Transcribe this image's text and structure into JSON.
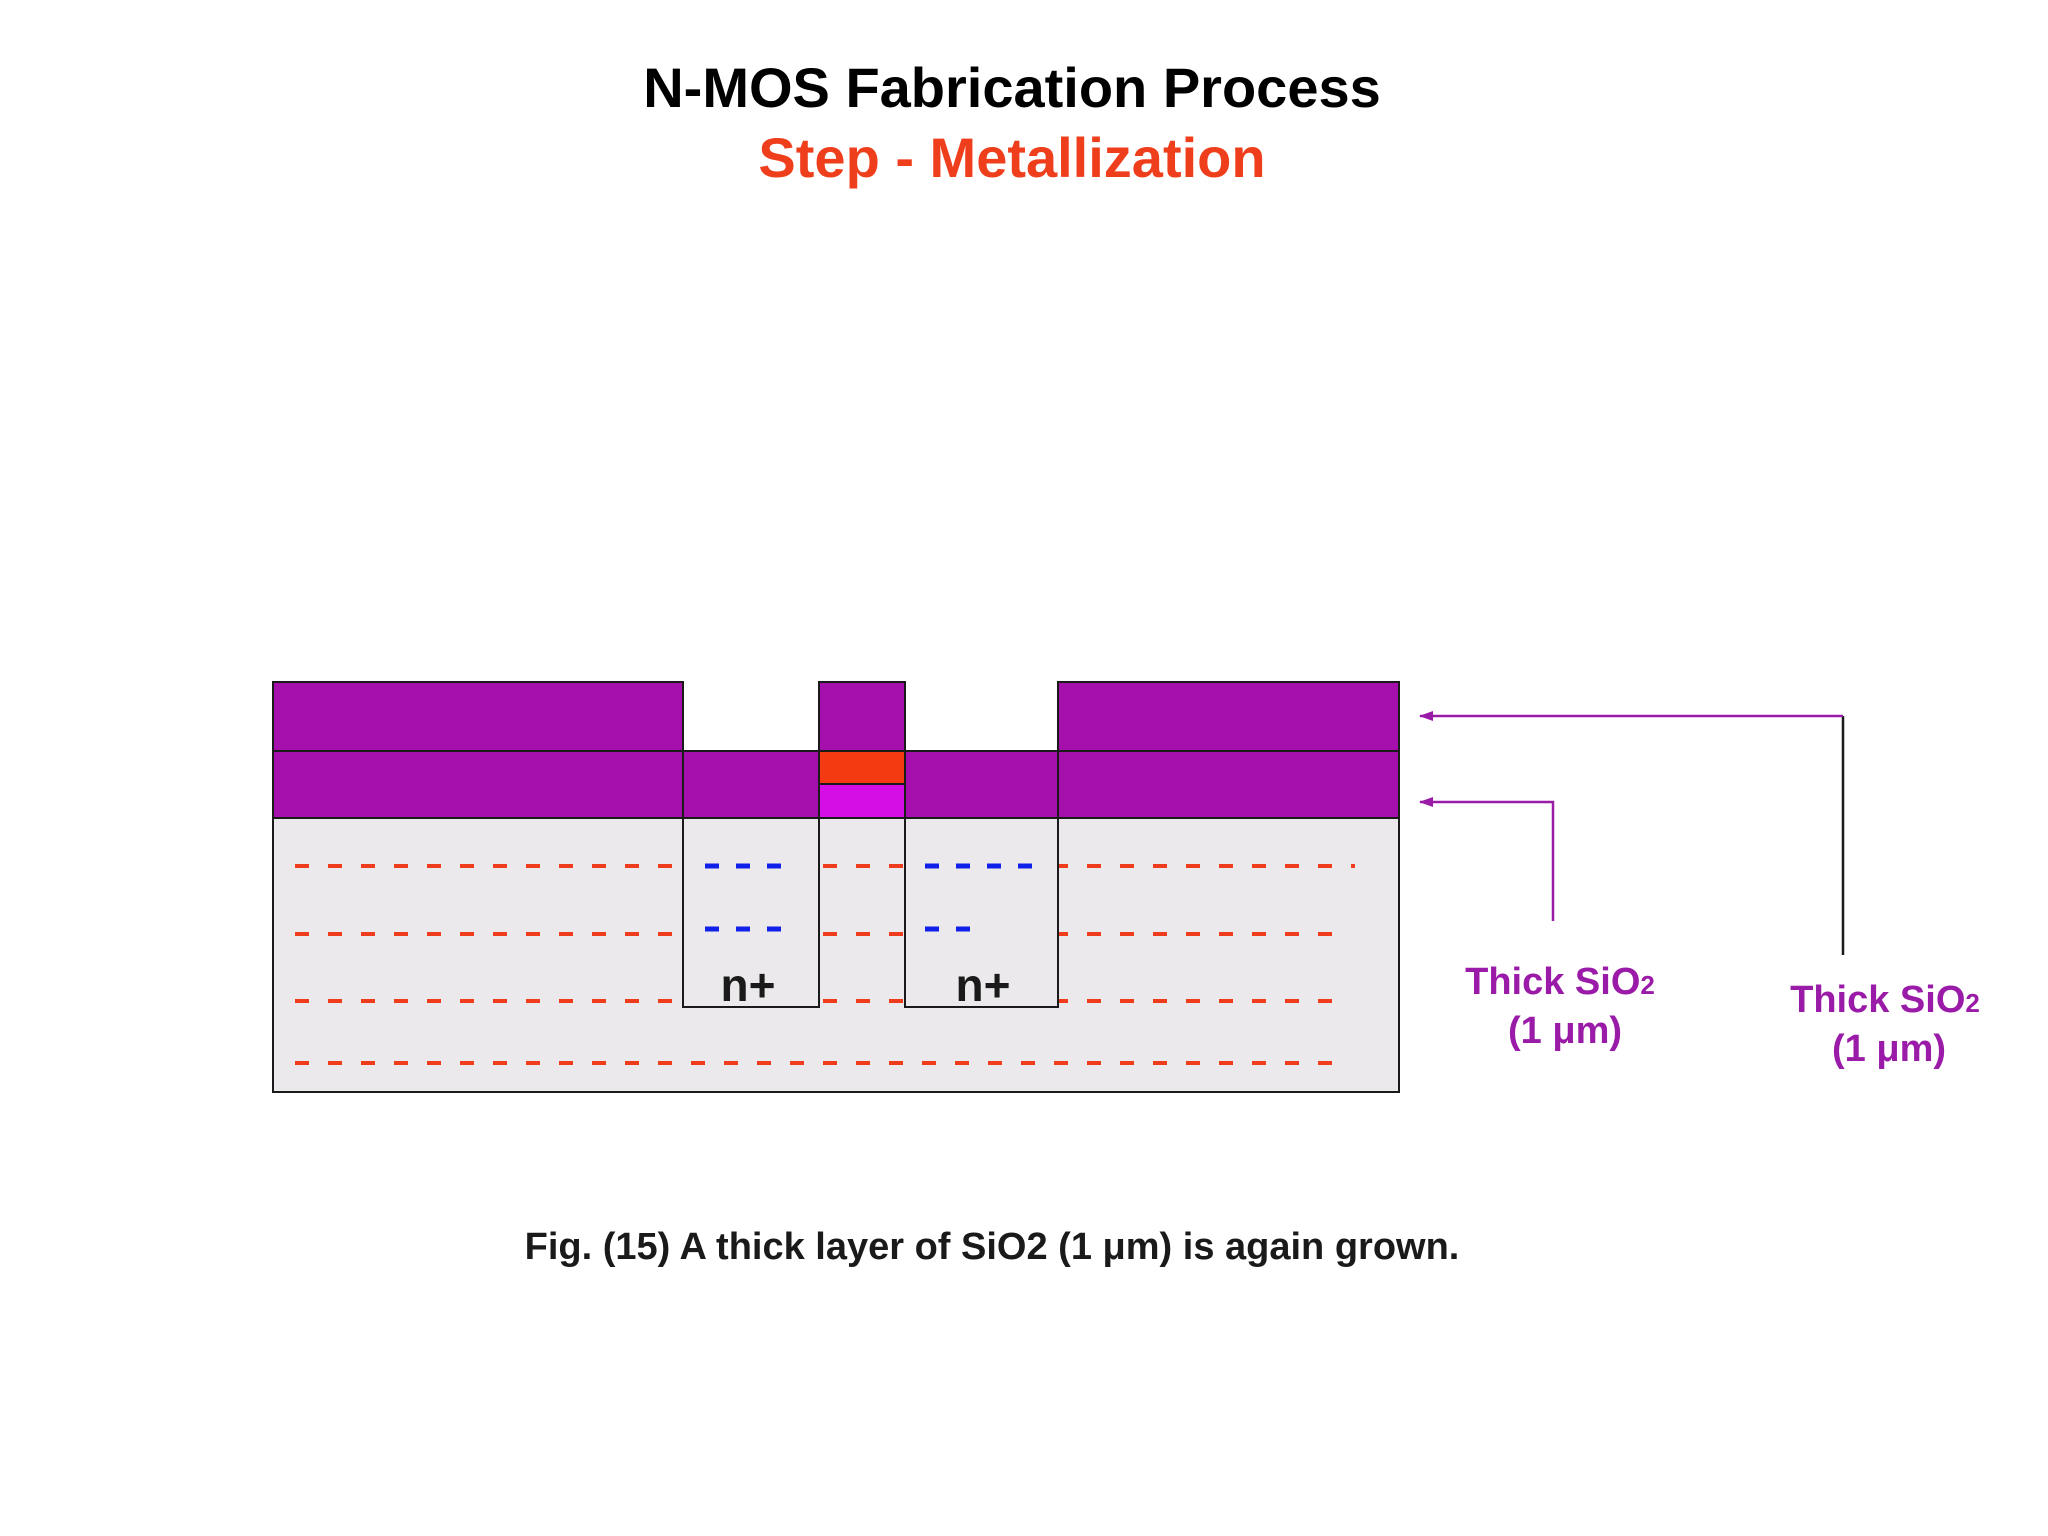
{
  "header": {
    "title": "N-MOS Fabrication Process",
    "subtitle": "Step - Metallization"
  },
  "diagram": {
    "region_labels": [
      "n+",
      "n+"
    ],
    "callouts": [
      {
        "line1_main": "Thick SiO",
        "line1_sub": "2",
        "line2": "(1 μm)"
      },
      {
        "line1_main": "Thick SiO",
        "line1_sub": "2",
        "line2": "(1 μm)"
      }
    ]
  },
  "caption": "Fig. (15) A  thick layer of SiO2 (1 μm) is again grown.",
  "colors": {
    "oxide": "#a50fab",
    "substrate": "#ebe9ec",
    "gate_metal": "#f43a10",
    "gate_oxide": "#d60ee6",
    "acceptor_dash": "#ee3c1c",
    "donor_dash": "#1020e8",
    "callout_text": "#9a1ba8",
    "subtitle": "#ef3e1b",
    "outline": "#1a1a1a"
  }
}
